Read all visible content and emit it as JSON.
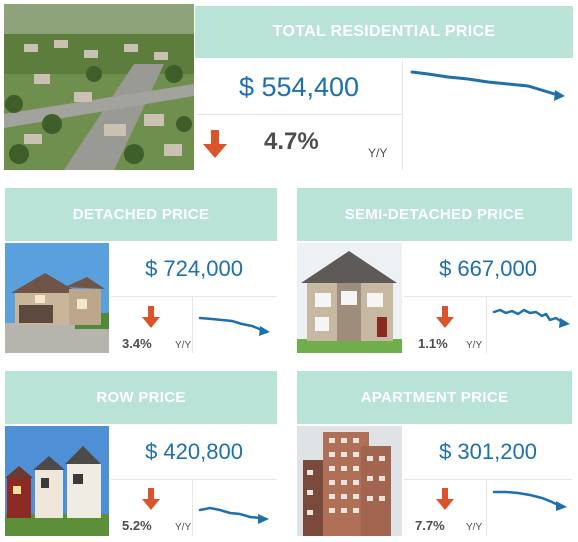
{
  "total": {
    "title": "TOTAL RESIDENTIAL PRICE",
    "price": "$  554,400",
    "change": "4.7%",
    "period": "Y/Y",
    "direction": "down"
  },
  "cards": [
    {
      "title": "DETACHED PRICE",
      "price": "$  724,000",
      "change": "3.4%",
      "period": "Y/Y",
      "direction": "down"
    },
    {
      "title": "SEMI-DETACHED PRICE",
      "price": "$  667,000",
      "change": "1.1%",
      "period": "Y/Y",
      "direction": "down"
    },
    {
      "title": "ROW PRICE",
      "price": "$  420,800",
      "change": "5.2%",
      "period": "Y/Y",
      "direction": "down"
    },
    {
      "title": "APARTMENT PRICE",
      "price": "$  301,200",
      "change": "7.7%",
      "period": "Y/Y",
      "direction": "down"
    }
  ],
  "colors": {
    "header_bg": "#b9e3d6",
    "price_text": "#1e6fae",
    "trend_line": "#1e6fae",
    "down_arrow": "#d9532b"
  },
  "icons": [
    "down-arrow-icon",
    "trend-line-icon"
  ]
}
